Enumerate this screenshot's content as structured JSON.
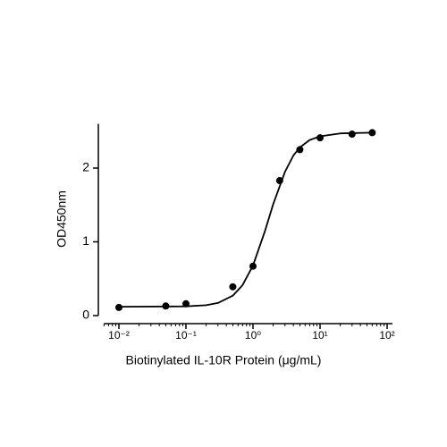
{
  "chart_data": {
    "type": "scatter",
    "x_label": "Biotinylated IL-10R Protein (μg/mL)",
    "y_label": "OD450nm",
    "xscale": "log",
    "xlim": [
      0.006,
      120
    ],
    "xticks": [
      {
        "value": 0.01,
        "label": "10⁻²"
      },
      {
        "value": 0.1,
        "label": "10⁻¹"
      },
      {
        "value": 1,
        "label": "10⁰"
      },
      {
        "value": 10,
        "label": "10¹"
      },
      {
        "value": 100,
        "label": "10²"
      }
    ],
    "ylim": [
      0,
      2.6
    ],
    "yticks": [
      0,
      1,
      2
    ],
    "series": [
      {
        "color": "#000000",
        "x": [
          0.01,
          0.05,
          0.1,
          0.5,
          1,
          2.5,
          5,
          10,
          30,
          60
        ],
        "values": [
          0.11,
          0.13,
          0.16,
          0.39,
          0.67,
          1.83,
          2.25,
          2.41,
          2.46,
          2.48
        ]
      },
      {
        "type": "line",
        "color": "#000000",
        "x": [
          0.01,
          0.1,
          0.2,
          0.3,
          0.5,
          0.7,
          1,
          1.5,
          2,
          3,
          4,
          5,
          7,
          10,
          20,
          60
        ],
        "values": [
          0.12,
          0.125,
          0.141,
          0.171,
          0.27,
          0.414,
          0.68,
          1.14,
          1.51,
          1.95,
          2.17,
          2.28,
          2.38,
          2.43,
          2.47,
          2.48
        ]
      }
    ]
  }
}
